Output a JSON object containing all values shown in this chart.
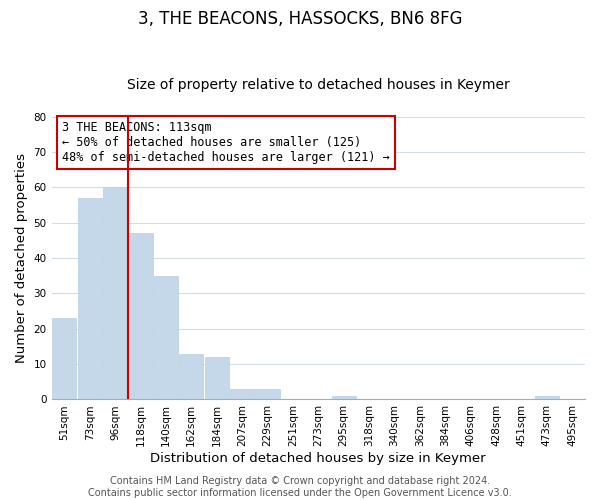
{
  "title": "3, THE BEACONS, HASSOCKS, BN6 8FG",
  "subtitle": "Size of property relative to detached houses in Keymer",
  "xlabel": "Distribution of detached houses by size in Keymer",
  "ylabel": "Number of detached properties",
  "bar_labels": [
    "51sqm",
    "73sqm",
    "96sqm",
    "118sqm",
    "140sqm",
    "162sqm",
    "184sqm",
    "207sqm",
    "229sqm",
    "251sqm",
    "273sqm",
    "295sqm",
    "318sqm",
    "340sqm",
    "362sqm",
    "384sqm",
    "406sqm",
    "428sqm",
    "451sqm",
    "473sqm",
    "495sqm"
  ],
  "bar_values": [
    23,
    57,
    60,
    47,
    35,
    13,
    12,
    3,
    3,
    0,
    0,
    1,
    0,
    0,
    0,
    0,
    0,
    0,
    0,
    1,
    0
  ],
  "bar_color": "#c5d8ea",
  "bar_edge_color": "#b8cfe0",
  "vline_color": "#cc0000",
  "vline_x_index": 2.5,
  "ylim": [
    0,
    80
  ],
  "yticks": [
    0,
    10,
    20,
    30,
    40,
    50,
    60,
    70,
    80
  ],
  "annotation_title": "3 THE BEACONS: 113sqm",
  "annotation_line1": "← 50% of detached houses are smaller (125)",
  "annotation_line2": "48% of semi-detached houses are larger (121) →",
  "annotation_box_facecolor": "#ffffff",
  "annotation_box_edgecolor": "#cc0000",
  "footer_line1": "Contains HM Land Registry data © Crown copyright and database right 2024.",
  "footer_line2": "Contains public sector information licensed under the Open Government Licence v3.0.",
  "background_color": "#ffffff",
  "grid_color": "#d0dde8",
  "title_fontsize": 12,
  "subtitle_fontsize": 10,
  "axis_label_fontsize": 9.5,
  "tick_fontsize": 7.5,
  "annotation_fontsize": 8.5,
  "footer_fontsize": 7
}
